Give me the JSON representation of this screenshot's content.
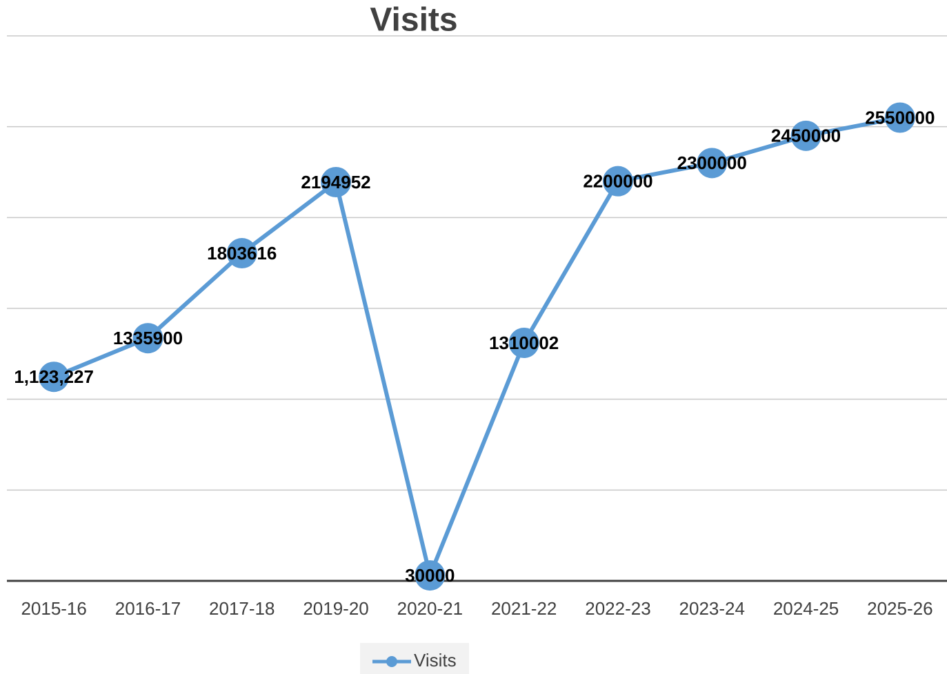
{
  "chart_data": {
    "type": "line",
    "title": "Visits",
    "categories": [
      "2015-16",
      "2016-17",
      "2017-18",
      "2019-20",
      "2020-21",
      "2021-22",
      "2022-23",
      "2023-24",
      "2024-25",
      "2025-26"
    ],
    "series": [
      {
        "name": "Visits",
        "color": "#5b9bd5",
        "values": [
          1123227,
          1335900,
          1803616,
          2194952,
          30000,
          1310002,
          2200000,
          2300000,
          2450000,
          2550000
        ],
        "value_labels": [
          "1,123,227",
          "1335900",
          "1803616",
          "2194952",
          "30000",
          "1310002",
          "2200000",
          "2300000",
          "2450000",
          "2550000"
        ]
      }
    ],
    "ylim": [
      0,
      3000000
    ],
    "yticks": [
      0,
      500000,
      1000000,
      1500000,
      2000000,
      2500000,
      3000000
    ],
    "grid": true,
    "legend": "bottom"
  }
}
